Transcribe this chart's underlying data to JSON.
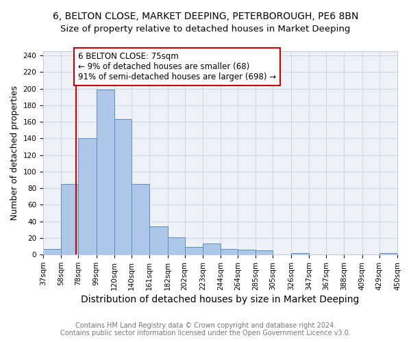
{
  "title": "6, BELTON CLOSE, MARKET DEEPING, PETERBOROUGH, PE6 8BN",
  "subtitle": "Size of property relative to detached houses in Market Deeping",
  "xlabel": "Distribution of detached houses by size in Market Deeping",
  "ylabel": "Number of detached properties",
  "bin_labels": [
    "37sqm",
    "58sqm",
    "78sqm",
    "99sqm",
    "120sqm",
    "140sqm",
    "161sqm",
    "182sqm",
    "202sqm",
    "223sqm",
    "244sqm",
    "264sqm",
    "285sqm",
    "305sqm",
    "326sqm",
    "347sqm",
    "367sqm",
    "388sqm",
    "409sqm",
    "429sqm",
    "450sqm"
  ],
  "bin_edges": [
    37,
    58,
    78,
    99,
    120,
    140,
    161,
    182,
    202,
    223,
    244,
    264,
    285,
    305,
    326,
    347,
    367,
    388,
    409,
    429,
    450
  ],
  "bar_heights": [
    7,
    85,
    140,
    199,
    163,
    85,
    34,
    21,
    9,
    13,
    7,
    6,
    5,
    0,
    2,
    0,
    0,
    0,
    0,
    2
  ],
  "bar_color": "#aec6e8",
  "bar_edge_color": "#5a8fc4",
  "vline_x": 75,
  "vline_color": "#cc0000",
  "annotation_text": "6 BELTON CLOSE: 75sqm\n← 9% of detached houses are smaller (68)\n91% of semi-detached houses are larger (698) →",
  "annotation_box_color": "#ffffff",
  "annotation_box_edge": "#cc0000",
  "ylim": [
    0,
    245
  ],
  "yticks": [
    0,
    20,
    40,
    60,
    80,
    100,
    120,
    140,
    160,
    180,
    200,
    220,
    240
  ],
  "grid_color": "#d0d8e8",
  "bg_color": "#eef2f8",
  "footer_line1": "Contains HM Land Registry data © Crown copyright and database right 2024.",
  "footer_line2": "Contains public sector information licensed under the Open Government Licence v3.0.",
  "title_fontsize": 10,
  "subtitle_fontsize": 9.5,
  "xlabel_fontsize": 10,
  "ylabel_fontsize": 9,
  "tick_fontsize": 7.5,
  "annotation_fontsize": 8.5,
  "footer_fontsize": 7
}
